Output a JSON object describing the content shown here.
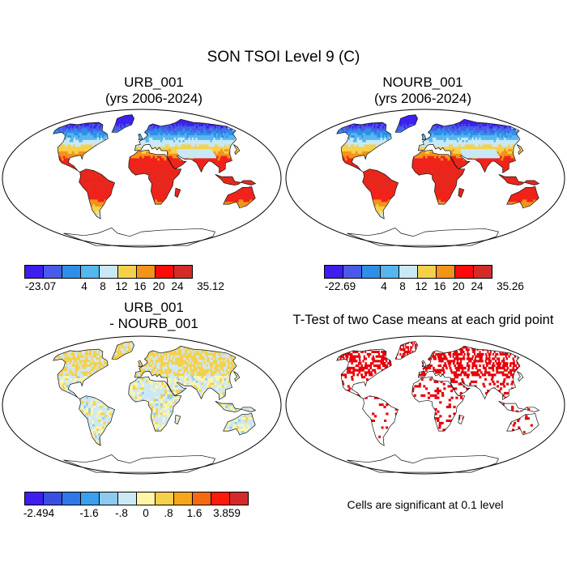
{
  "title": "SON TSOI Level 9 (C)",
  "panels": [
    {
      "id": "urb",
      "title_line1": "URB_001",
      "title_line2": "(yrs 2006-2024)",
      "kind": "field",
      "colorbar": {
        "colors": [
          "#3c1ef0",
          "#4a5ae8",
          "#2f8fe8",
          "#56b6ee",
          "#c8e8f5",
          "#f5d04a",
          "#f5921a",
          "#ff0a0a",
          "#d42a2a"
        ],
        "labels": [
          "-23.07",
          "4",
          "8",
          "12",
          "16",
          "20",
          "24",
          "35.12"
        ]
      }
    },
    {
      "id": "nourb",
      "title_line1": "NOURB_001",
      "title_line2": "(yrs 2006-2024)",
      "kind": "field",
      "colorbar": {
        "colors": [
          "#3c1ef0",
          "#4a5ae8",
          "#2f8fe8",
          "#56b6ee",
          "#c8e8f5",
          "#f5d04a",
          "#f5921a",
          "#ff0a0a",
          "#d42a2a"
        ],
        "labels": [
          "-22.69",
          "4",
          "8",
          "12",
          "16",
          "20",
          "24",
          "35.26"
        ]
      }
    },
    {
      "id": "diff",
      "title_line1": "URB_001",
      "title_line2": "- NOURB_001",
      "kind": "diff",
      "colorbar": {
        "colors": [
          "#3c1ef0",
          "#3a4fe0",
          "#2f78e8",
          "#3aa0ee",
          "#8ccaf0",
          "#cde8f5",
          "#fff6a8",
          "#f5d04a",
          "#f5a61a",
          "#f56a10",
          "#ff1a0a",
          "#d42a2a"
        ],
        "labels": [
          "-2.494",
          "-1.6",
          "-.8",
          "0",
          ".8",
          "1.6",
          "3.859"
        ]
      }
    },
    {
      "id": "ttest",
      "title_line1": "T-Test of two Case means at each grid point",
      "title_line2": "",
      "kind": "ttest",
      "note": "Cells are significant at 0.1 level"
    }
  ]
}
